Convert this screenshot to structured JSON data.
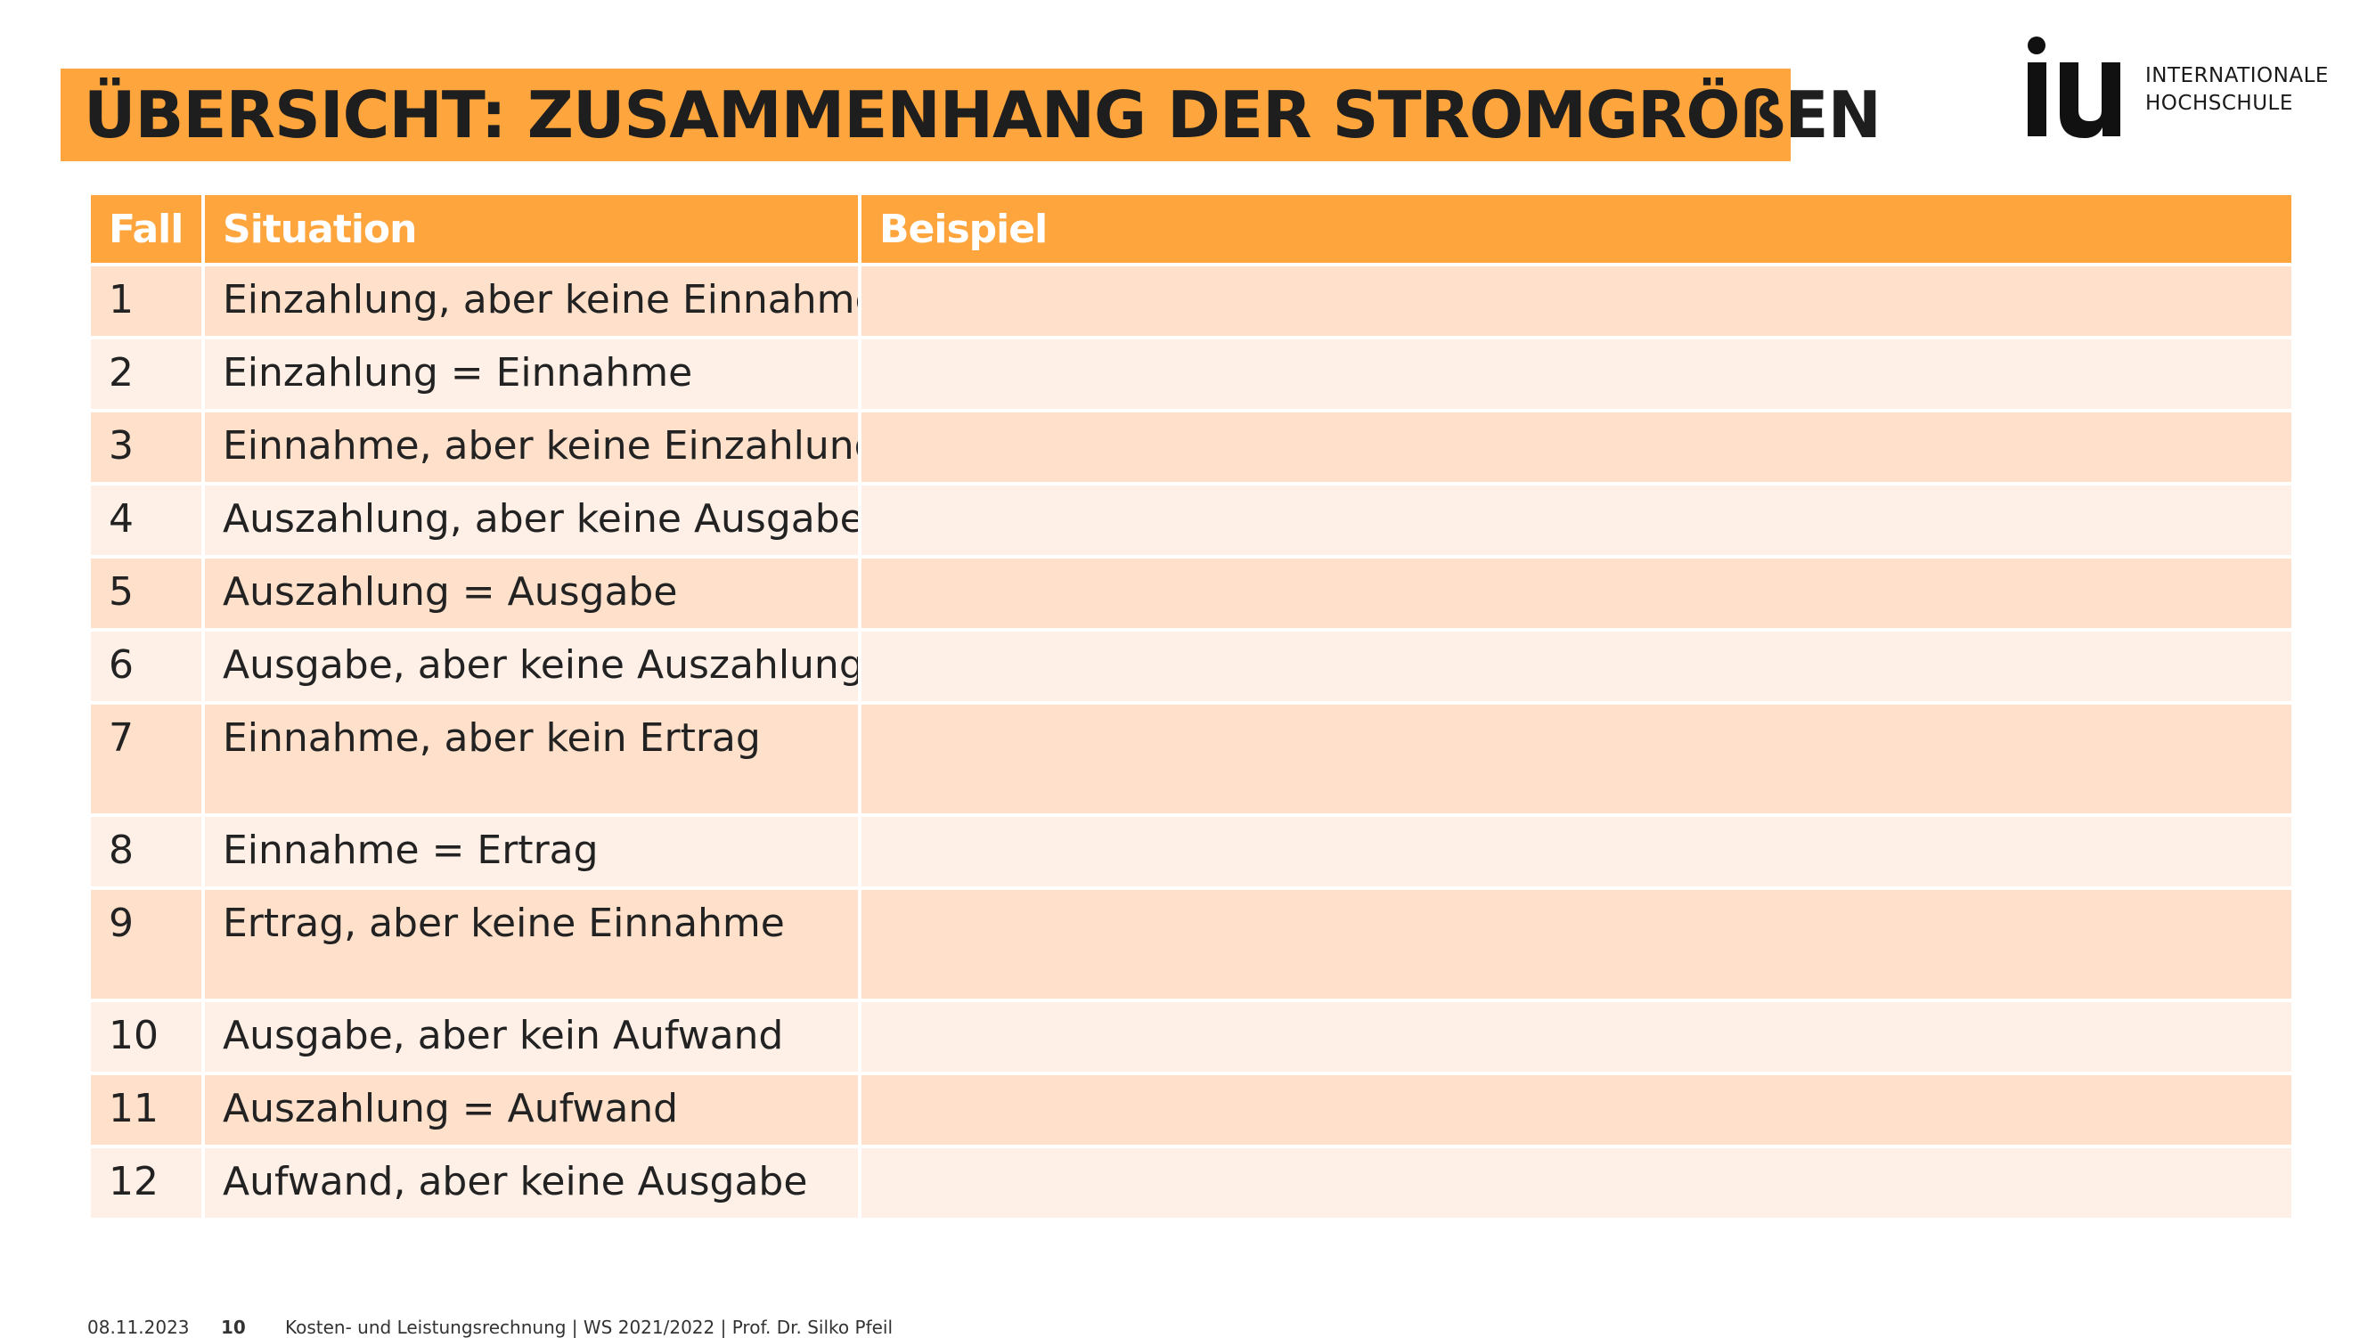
{
  "header": {
    "title": "ÜBERSICHT: ZUSAMMENHANG DER STROMGRÖßEN"
  },
  "logo": {
    "mark": "iu",
    "line1": "INTERNATIONALE",
    "line2": "HOCHSCHULE"
  },
  "table": {
    "columns": [
      "Fall",
      "Situation",
      "Beispiel"
    ],
    "rows": [
      {
        "fall": "1",
        "situation": "Einzahlung, aber keine Einnahme",
        "beispiel": ""
      },
      {
        "fall": "2",
        "situation": "Einzahlung = Einnahme",
        "beispiel": ""
      },
      {
        "fall": "3",
        "situation": "Einnahme, aber keine Einzahlung",
        "beispiel": ""
      },
      {
        "fall": "4",
        "situation": "Auszahlung, aber keine Ausgabe",
        "beispiel": ""
      },
      {
        "fall": "5",
        "situation": "Auszahlung = Ausgabe",
        "beispiel": ""
      },
      {
        "fall": "6",
        "situation": "Ausgabe, aber keine Auszahlung",
        "beispiel": ""
      },
      {
        "fall": "7",
        "situation": "Einnahme, aber kein Ertrag",
        "beispiel": ""
      },
      {
        "fall": "8",
        "situation": "Einnahme = Ertrag",
        "beispiel": ""
      },
      {
        "fall": "9",
        "situation": "Ertrag, aber keine Einnahme",
        "beispiel": ""
      },
      {
        "fall": "10",
        "situation": "Ausgabe, aber kein Aufwand",
        "beispiel": ""
      },
      {
        "fall": "11",
        "situation": "Auszahlung = Aufwand",
        "beispiel": ""
      },
      {
        "fall": "12",
        "situation": "Aufwand, aber keine Ausgabe",
        "beispiel": ""
      }
    ]
  },
  "footer": {
    "date": "08.11.2023",
    "page": "10",
    "course": "Kosten- und Leistungsrechnung | WS 2021/2022 | Prof. Dr. Silko Pfeil"
  },
  "colors": {
    "accent": "#fea53d",
    "row_odd": "#fee0cb",
    "row_even": "#fff0e7"
  }
}
